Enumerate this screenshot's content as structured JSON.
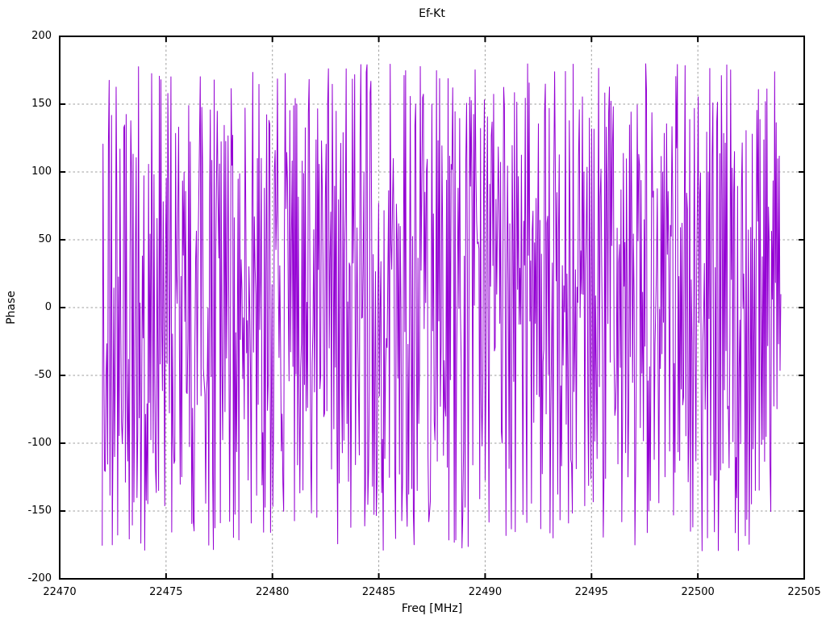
{
  "chart_data": {
    "type": "line",
    "title": "Ef-Kt",
    "xlabel": "Freq [MHz]",
    "ylabel": "Phase",
    "xlim": [
      22470,
      22505
    ],
    "ylim": [
      -200,
      200
    ],
    "x_ticks": [
      22470,
      22475,
      22480,
      22485,
      22490,
      22495,
      22500,
      22505
    ],
    "y_ticks": [
      -200,
      -150,
      -100,
      -50,
      0,
      50,
      100,
      150,
      200
    ],
    "grid": true,
    "grid_style": "dashed",
    "legend": "none",
    "border_color": "#000000",
    "grid_color": "#9e9e9e",
    "background_color": "#ffffff",
    "text_color": "#000000",
    "series": [
      {
        "name": "Ef-Kt",
        "color": "#9400d3",
        "style": "lines",
        "x_start": 22472.0,
        "x_end": 22503.9,
        "n_points": 880,
        "y_wrap": [
          -180,
          180
        ],
        "description": "wrapped phase noise covering the full -180..180 deg range, appears as dense vertical strokes",
        "synthesis": {
          "seed": 20240815,
          "step_max_deg": 320,
          "phase0": 120
        }
      }
    ]
  }
}
